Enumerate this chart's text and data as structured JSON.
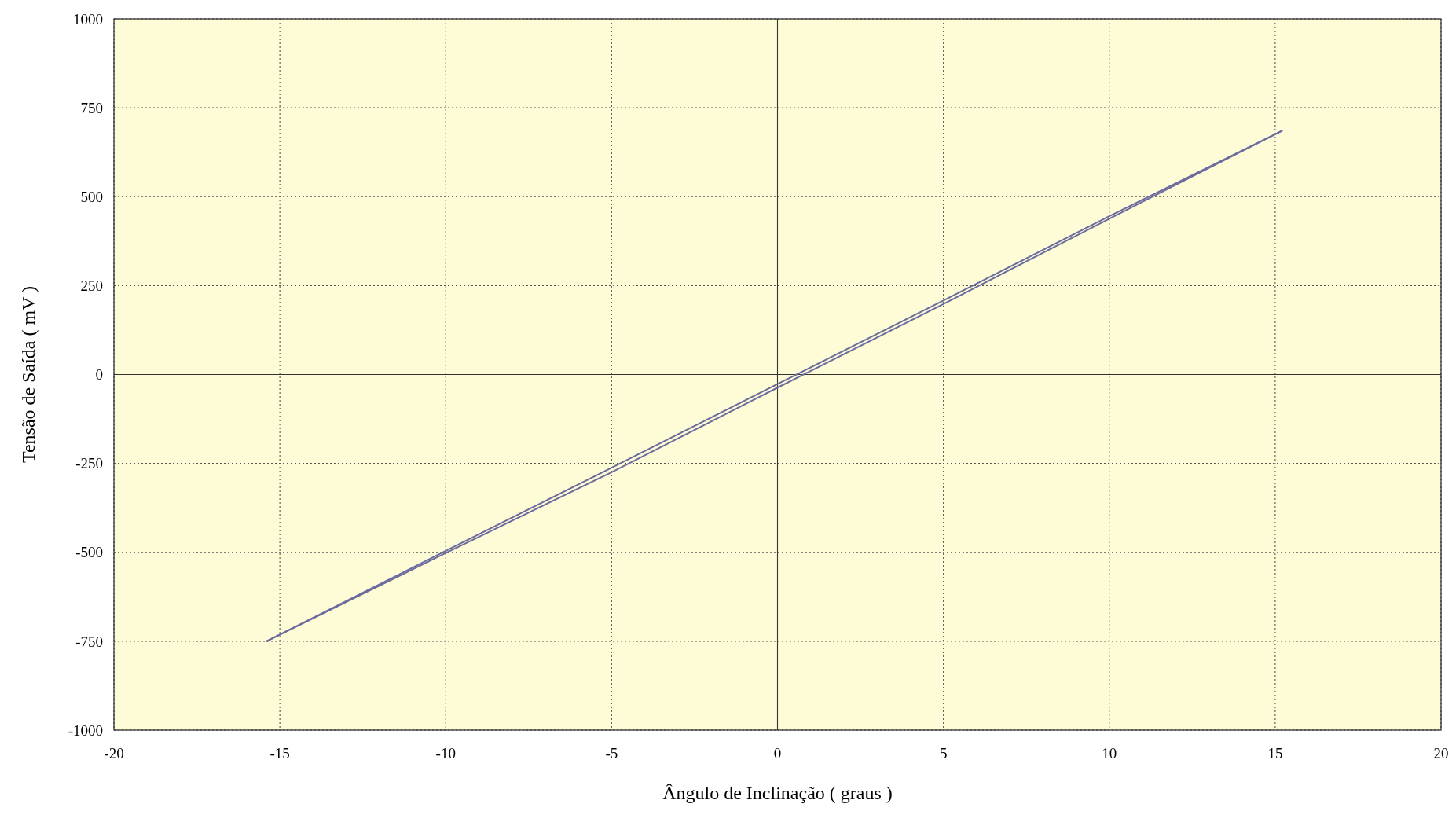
{
  "chart_data": {
    "type": "line",
    "xlabel": "Ângulo de Inclinação ( graus )",
    "ylabel": "Tensão de Saída ( mV )",
    "xlim": [
      -20,
      20
    ],
    "xticks": [
      -20,
      -15,
      -10,
      -5,
      0,
      5,
      10,
      15,
      20
    ],
    "ylim": [
      -1000,
      1000
    ],
    "yticks": [
      -1000,
      -750,
      -500,
      -250,
      0,
      250,
      500,
      750,
      1000
    ],
    "grid": true,
    "line_style": "solid",
    "marker": "none",
    "series": [
      {
        "color": "#6b6b9e",
        "x": [
          -15.4,
          -10,
          -5,
          0,
          5,
          10,
          15.2
        ],
        "values": [
          -750,
          -496,
          -262,
          -27,
          208,
          445,
          685
        ]
      },
      {
        "color": "#6b6b9e",
        "x": [
          -15.4,
          -10,
          -5,
          0,
          5,
          10,
          15.2
        ],
        "values": [
          -750,
          -502,
          -275,
          -37,
          198,
          438,
          685
        ]
      }
    ]
  }
}
